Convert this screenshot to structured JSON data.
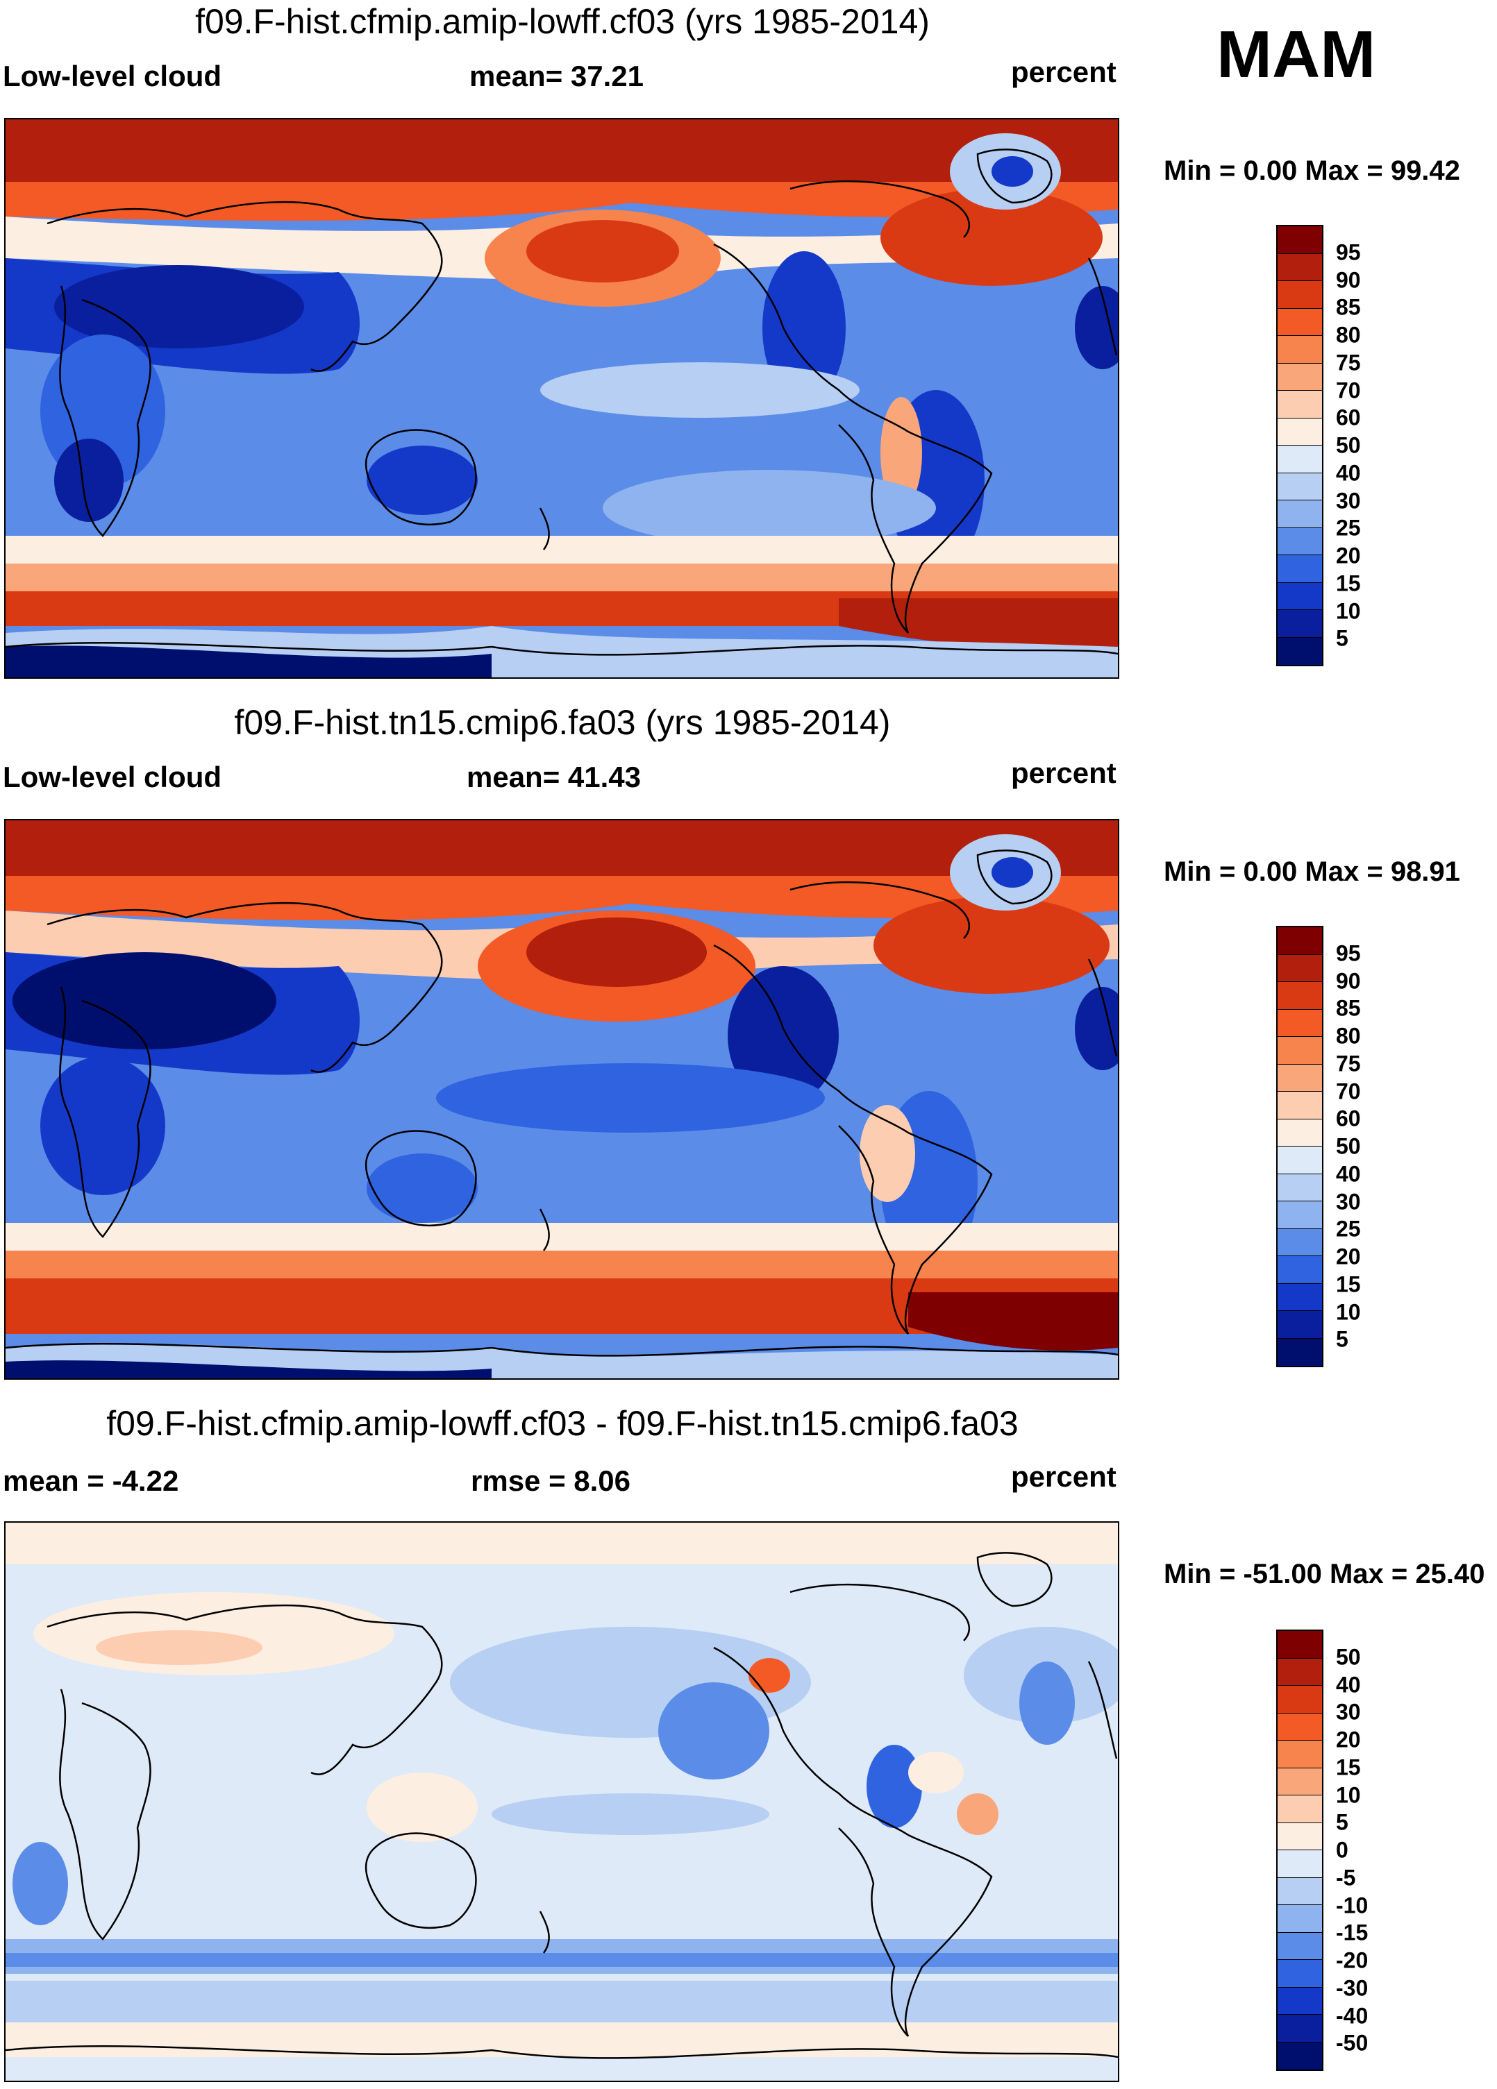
{
  "season": "MAM",
  "units": "percent",
  "panels": [
    {
      "title": "f09.F-hist.cfmip.amip-lowff.cf03 (yrs 1985-2014)",
      "left_label": "Low-level cloud",
      "center_label": "mean=  37.21",
      "right_label": "percent",
      "minmax": "Min =   0.00 Max =  99.42",
      "colorbar_labels": [
        "95",
        "90",
        "85",
        "80",
        "75",
        "70",
        "60",
        "50",
        "40",
        "30",
        "25",
        "20",
        "15",
        "10",
        "5"
      ]
    },
    {
      "title": "f09.F-hist.tn15.cmip6.fa03 (yrs 1985-2014)",
      "left_label": "Low-level cloud",
      "center_label": "mean=  41.43",
      "right_label": "percent",
      "minmax": "Min =   0.00 Max =  98.91",
      "colorbar_labels": [
        "95",
        "90",
        "85",
        "80",
        "75",
        "70",
        "60",
        "50",
        "40",
        "30",
        "25",
        "20",
        "15",
        "10",
        "5"
      ]
    },
    {
      "title": "f09.F-hist.cfmip.amip-lowff.cf03 - f09.F-hist.tn15.cmip6.fa03",
      "left_label": "mean =  -4.22",
      "center_label": "rmse =   8.06",
      "right_label": "percent",
      "minmax": "Min = -51.00 Max =  25.40",
      "colorbar_labels": [
        "50",
        "40",
        "30",
        "20",
        "15",
        "10",
        "5",
        "0",
        "-5",
        "-10",
        "-15",
        "-20",
        "-30",
        "-40",
        "-50"
      ]
    }
  ],
  "colors": {
    "abs_scale": [
      "#7f0000",
      "#b2200d",
      "#d93a14",
      "#f35a25",
      "#f7834d",
      "#f9a67a",
      "#fccdb0",
      "#fdeee2",
      "#dfeaf8",
      "#b6cff3",
      "#8fb3ee",
      "#5b8ce8",
      "#2f63e0",
      "#1439c9",
      "#0a1f9e",
      "#000e6e"
    ],
    "diff_scale": [
      "#7f0000",
      "#b2200d",
      "#d93a14",
      "#f35a25",
      "#f7834d",
      "#f9a67a",
      "#fccdb0",
      "#fdeee2",
      "#dfeaf8",
      "#b6cff3",
      "#8fb3ee",
      "#5b8ce8",
      "#2f63e0",
      "#1439c9",
      "#0a1f9e",
      "#000e6e"
    ]
  }
}
